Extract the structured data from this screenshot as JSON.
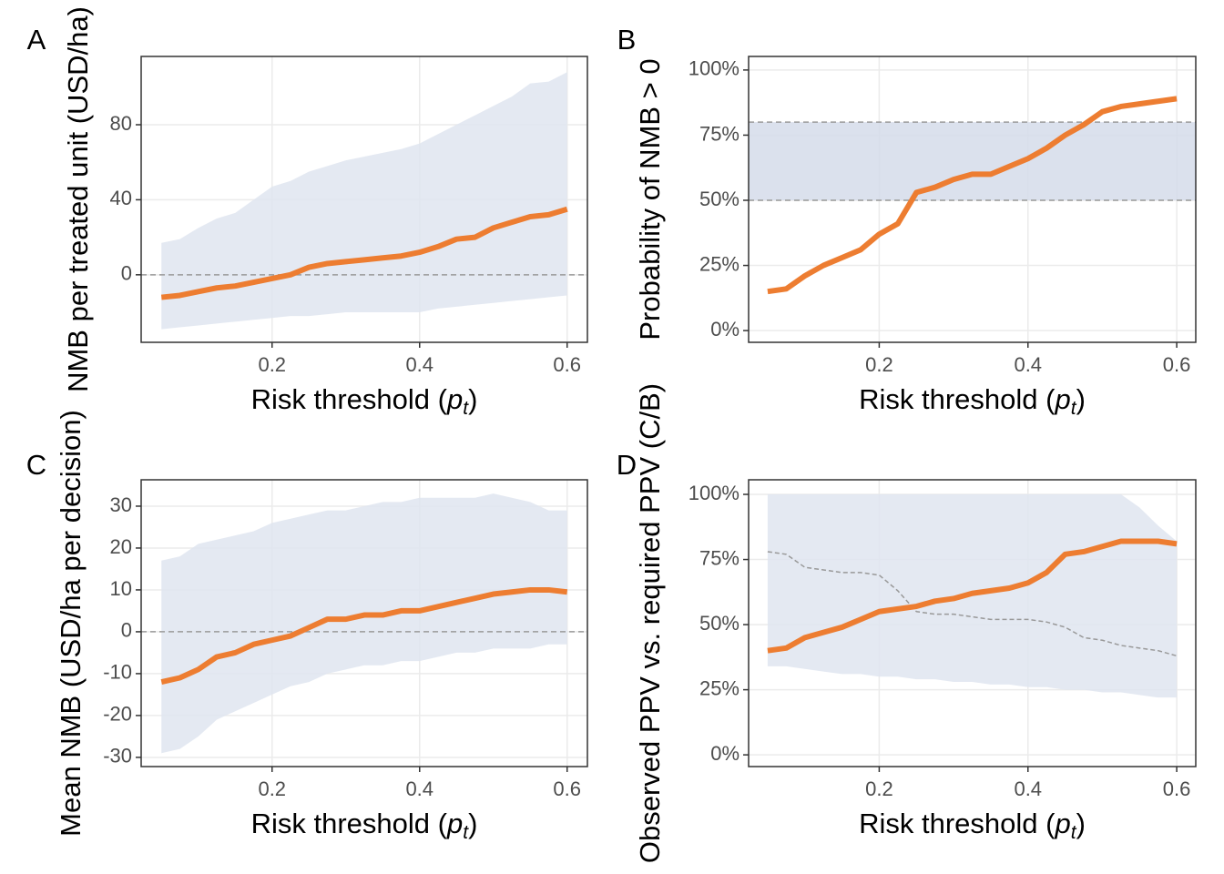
{
  "chart_data": [
    {
      "type": "line",
      "panel": "A",
      "ylabel": "NMB per treated unit (USD/ha)",
      "xlabel": {
        "text": "Risk threshold (",
        "var": "p",
        "sub": "t",
        "close": ")"
      },
      "x": [
        0.05,
        0.075,
        0.1,
        0.125,
        0.15,
        0.175,
        0.2,
        0.225,
        0.25,
        0.275,
        0.3,
        0.325,
        0.35,
        0.375,
        0.4,
        0.425,
        0.45,
        0.475,
        0.5,
        0.525,
        0.55,
        0.575,
        0.6
      ],
      "series": [
        {
          "color": "#ed7d31",
          "values": [
            -12,
            -11,
            -9,
            -7,
            -6,
            -4,
            -2,
            0,
            4,
            6,
            7,
            8,
            9,
            10,
            12,
            15,
            19,
            20,
            25,
            28,
            31,
            32,
            35
          ]
        }
      ],
      "band": {
        "color": "#dfe5f0",
        "upper": [
          17,
          19,
          25,
          30,
          33,
          40,
          47,
          50,
          55,
          58,
          61,
          63,
          65,
          67,
          70,
          75,
          80,
          85,
          90,
          95,
          102,
          103,
          108
        ],
        "lower": [
          -29,
          -28,
          -27,
          -26,
          -25,
          -24,
          -23,
          -22,
          -22,
          -21,
          -20,
          -20,
          -20,
          -20,
          -20,
          -18,
          -17,
          -16,
          -15,
          -14,
          -13,
          -12,
          -11
        ]
      },
      "hlines": [
        0
      ],
      "xlim": [
        0.0225,
        0.6275
      ],
      "ylim": [
        -36,
        116.4
      ],
      "xticks": [
        0.2,
        0.4,
        0.6
      ],
      "yticks": [
        0,
        40,
        80
      ],
      "grid": true
    },
    {
      "type": "line",
      "panel": "B",
      "ylabel": "Probability of NMB > 0",
      "xlabel": {
        "text": "Risk threshold (",
        "var": "p",
        "sub": "t",
        "close": ")"
      },
      "x": [
        0.05,
        0.075,
        0.1,
        0.125,
        0.15,
        0.175,
        0.2,
        0.225,
        0.25,
        0.275,
        0.3,
        0.325,
        0.35,
        0.375,
        0.4,
        0.425,
        0.45,
        0.475,
        0.5,
        0.525,
        0.55,
        0.575,
        0.6
      ],
      "series": [
        {
          "color": "#ed7d31",
          "values": [
            15,
            16,
            21,
            25,
            28,
            31,
            37,
            41,
            53,
            55,
            58,
            60,
            60,
            63,
            66,
            70,
            75,
            79,
            84,
            86,
            87,
            88,
            89
          ]
        }
      ],
      "hspan": {
        "from": 50,
        "to": 80,
        "color": "#d5dcea"
      },
      "hlines": [
        50,
        80
      ],
      "xlim": [
        0.0244,
        0.6256
      ],
      "ylim": [
        -4.5,
        105.2
      ],
      "xticks": [
        0.2,
        0.4,
        0.6
      ],
      "yticks": [
        {
          "value": 0,
          "label": "0%"
        },
        {
          "value": 25,
          "label": "25%"
        },
        {
          "value": 50,
          "label": "50%"
        },
        {
          "value": 75,
          "label": "75%"
        },
        {
          "value": 100,
          "label": "100%"
        }
      ],
      "grid": true
    },
    {
      "type": "line",
      "panel": "C",
      "ylabel": "Mean NMB (USD/ha per decision)",
      "xlabel": {
        "text": "Risk threshold (",
        "var": "p",
        "sub": "t",
        "close": ")"
      },
      "x": [
        0.05,
        0.075,
        0.1,
        0.125,
        0.15,
        0.175,
        0.2,
        0.225,
        0.25,
        0.275,
        0.3,
        0.325,
        0.35,
        0.375,
        0.4,
        0.425,
        0.45,
        0.475,
        0.5,
        0.525,
        0.55,
        0.575,
        0.6
      ],
      "series": [
        {
          "color": "#ed7d31",
          "values": [
            -12,
            -11,
            -9,
            -6,
            -5,
            -3,
            -2,
            -1,
            1,
            3,
            3,
            4,
            4,
            5,
            5,
            6,
            7,
            8,
            9,
            9.5,
            10,
            10,
            9.5
          ]
        }
      ],
      "band": {
        "color": "#dfe5f0",
        "upper": [
          17,
          18,
          21,
          22,
          23,
          24,
          26,
          27,
          28,
          29,
          29,
          30,
          31,
          31,
          32,
          32,
          32,
          32,
          33,
          32,
          31,
          29,
          29
        ],
        "lower": [
          -29,
          -28,
          -25,
          -21,
          -19,
          -17,
          -15,
          -13,
          -12,
          -10,
          -9,
          -8,
          -8,
          -7,
          -7,
          -6,
          -5,
          -5,
          -4,
          -4,
          -4,
          -3,
          -3
        ]
      },
      "hlines": [
        0
      ],
      "xlim": [
        0.0225,
        0.6275
      ],
      "ylim": [
        -32.2,
        36.3
      ],
      "xticks": [
        0.2,
        0.4,
        0.6
      ],
      "yticks": [
        -30,
        -20,
        -10,
        0,
        10,
        20,
        30
      ],
      "grid": true
    },
    {
      "type": "line",
      "panel": "D",
      "ylabel": "Observed PPV vs. required PPV (C/B)",
      "xlabel": {
        "text": "Risk threshold (",
        "var": "p",
        "sub": "t",
        "close": ")"
      },
      "x": [
        0.05,
        0.075,
        0.1,
        0.125,
        0.15,
        0.175,
        0.2,
        0.225,
        0.25,
        0.275,
        0.3,
        0.325,
        0.35,
        0.375,
        0.4,
        0.425,
        0.45,
        0.475,
        0.5,
        0.525,
        0.55,
        0.575,
        0.6
      ],
      "series": [
        {
          "color": "#999999",
          "dashed": true,
          "values": [
            78,
            77,
            72,
            71,
            70,
            70,
            69,
            63,
            55,
            54,
            54,
            53,
            52,
            52,
            52,
            51,
            49,
            45,
            44,
            42,
            41,
            40,
            38
          ]
        },
        {
          "color": "#ed7d31",
          "values": [
            40,
            41,
            45,
            47,
            49,
            52,
            55,
            56,
            57,
            59,
            60,
            62,
            63,
            64,
            66,
            70,
            77,
            78,
            80,
            82,
            82,
            82,
            81
          ]
        }
      ],
      "band": {
        "color": "#dfe5f0",
        "upper": [
          100,
          100,
          100,
          100,
          100,
          100,
          100,
          100,
          100,
          100,
          100,
          100,
          100,
          100,
          100,
          100,
          100,
          100,
          100,
          100,
          95,
          88,
          82
        ],
        "lower": [
          34,
          34,
          33,
          32,
          31,
          31,
          30,
          30,
          29,
          29,
          28,
          28,
          27,
          27,
          26,
          26,
          25,
          25,
          24,
          24,
          23,
          22,
          22
        ]
      },
      "xlim": [
        0.0244,
        0.6256
      ],
      "ylim": [
        -4.5,
        105.6
      ],
      "xticks": [
        0.2,
        0.4,
        0.6
      ],
      "yticks": [
        {
          "value": 0,
          "label": "0%"
        },
        {
          "value": 25,
          "label": "25%"
        },
        {
          "value": 50,
          "label": "50%"
        },
        {
          "value": 75,
          "label": "75%"
        },
        {
          "value": 100,
          "label": "100%"
        }
      ],
      "grid": true
    }
  ]
}
